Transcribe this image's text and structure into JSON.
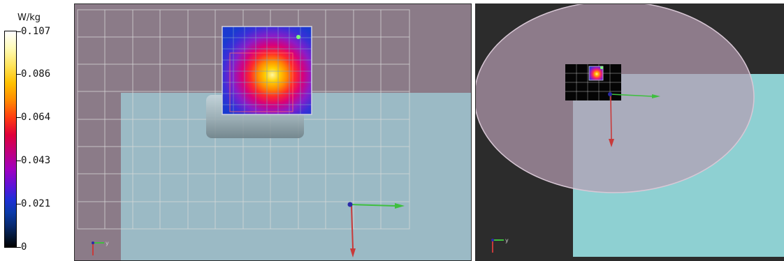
{
  "colorbar": {
    "unit": "W/kg",
    "ticks": [
      "0.107",
      "0.086",
      "0.064",
      "0.043",
      "0.021",
      "0"
    ]
  },
  "left_view": {
    "axis_label": "y"
  },
  "right_view": {
    "axis_label": "y"
  },
  "colors": {
    "background_purple": "#8b7b88",
    "phantom_cyan": "#9ec6d0",
    "grid_line": "#d8d8d8",
    "axis_red": "#c83a3a",
    "axis_green": "#3fbf3f",
    "axis_blue": "#2a2aa8"
  },
  "icons": [
    "axis-triad-icon"
  ]
}
